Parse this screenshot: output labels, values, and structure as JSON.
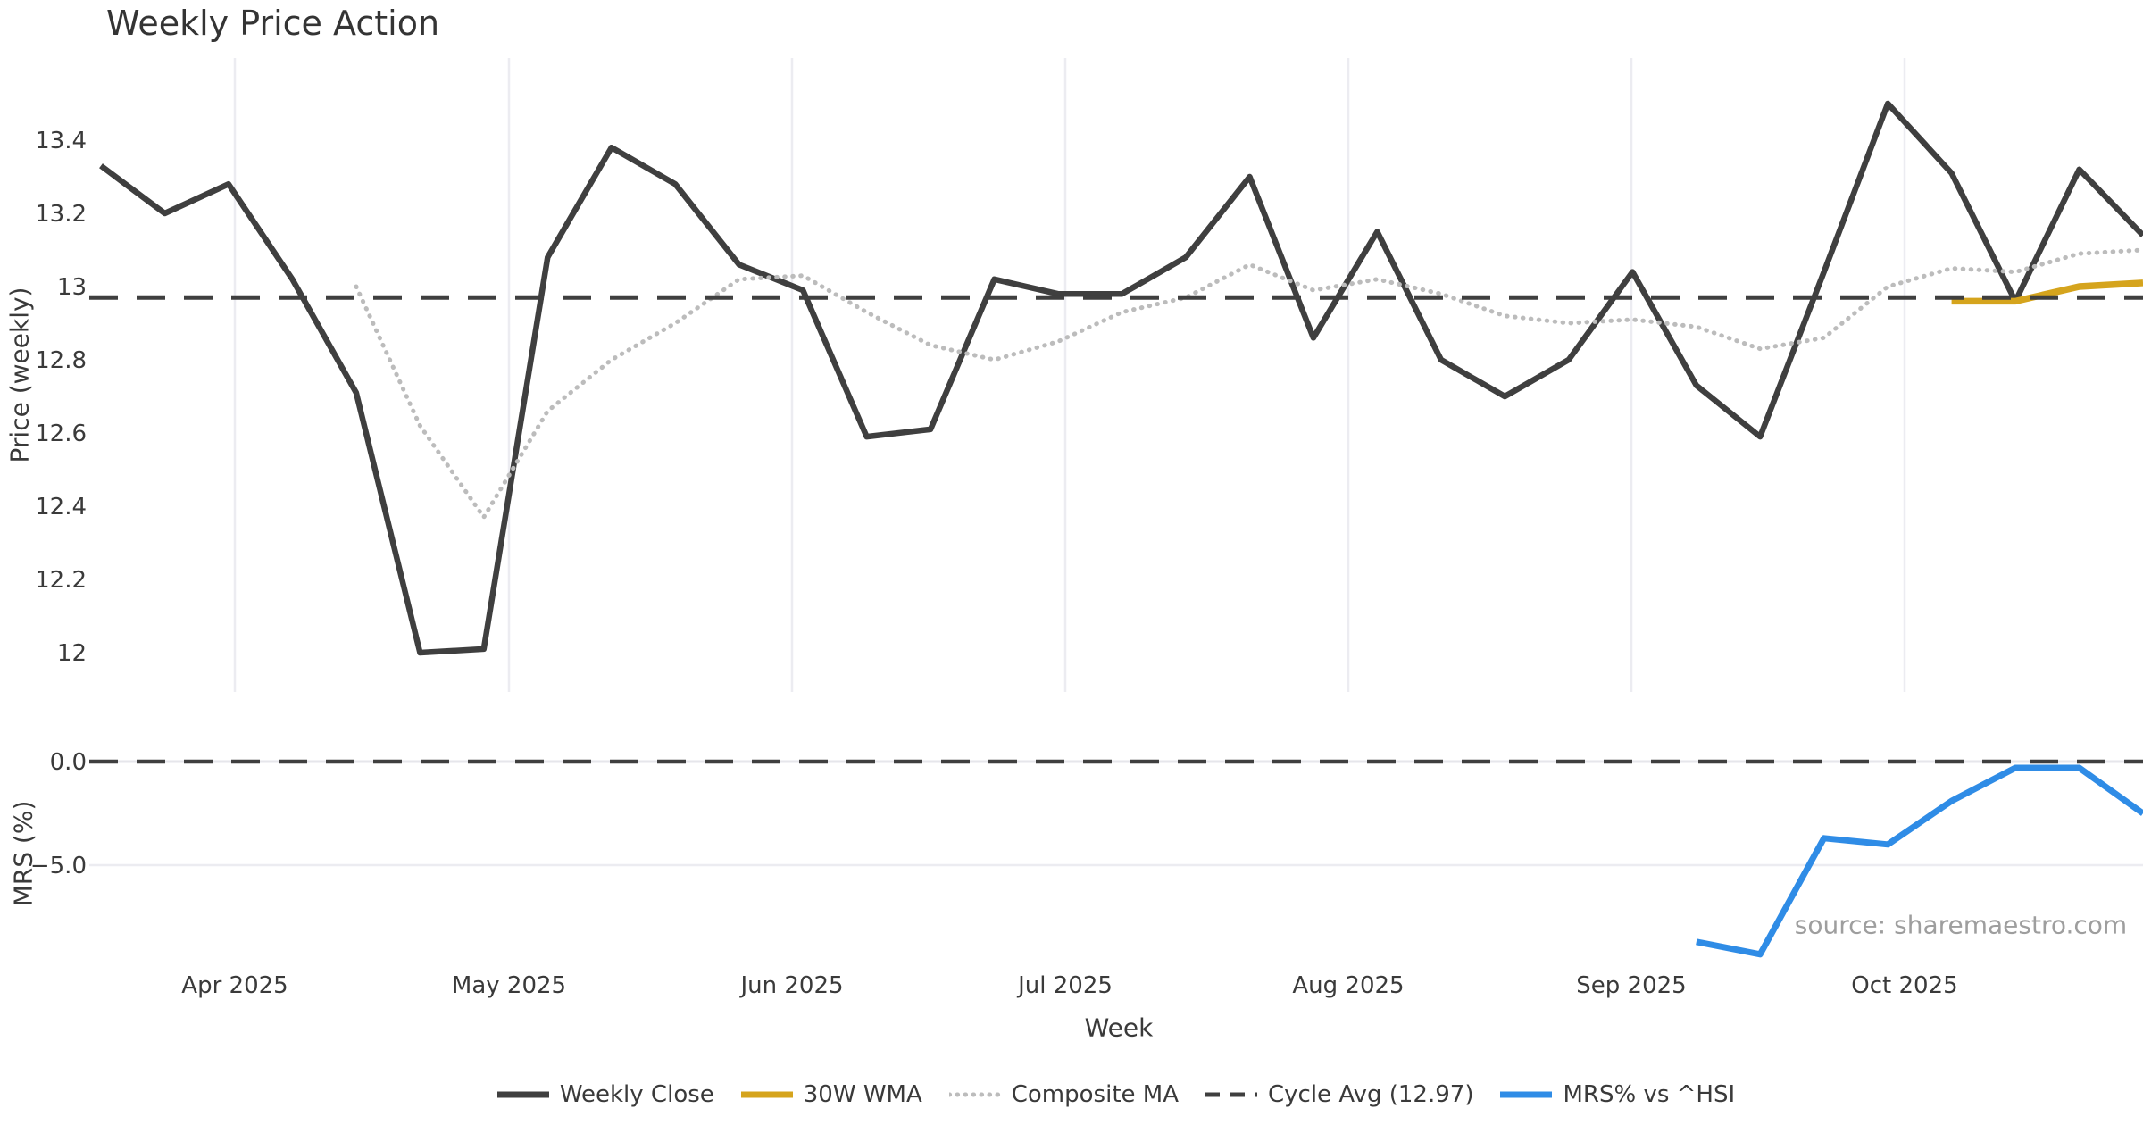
{
  "title": "Weekly Price Action",
  "source_note": "source: sharemaestro.com",
  "colors": {
    "close": "#3f3f3f",
    "wma": "#d5a41d",
    "composite": "#bcbcbc",
    "cycle": "#3f3f3f",
    "mrs": "#2f8ce6",
    "grid": "#ececf1",
    "zero_grid": "#e6e6eb",
    "tick_text": "#3a3a3a",
    "source_text": "#9e9e9e"
  },
  "legend": {
    "items": [
      {
        "label": "Weekly Close",
        "color": "#3f3f3f",
        "style": "solid"
      },
      {
        "label": "30W WMA",
        "color": "#d5a41d",
        "style": "solid"
      },
      {
        "label": "Composite MA",
        "color": "#bcbcbc",
        "style": "dotted"
      },
      {
        "label": "Cycle Avg (12.97)",
        "color": "#3f3f3f",
        "style": "dashed"
      },
      {
        "label": "MRS% vs ^HSI",
        "color": "#2f8ce6",
        "style": "solid"
      }
    ]
  },
  "chart_data": [
    {
      "type": "line",
      "panel": "price",
      "title": "Weekly Price Action",
      "xlabel": "Week",
      "ylabel": "Price (weekly)",
      "x_unit": "week",
      "n_weeks": 33,
      "x_tick_labels": [
        "Apr 2025",
        "May 2025",
        "Jun 2025",
        "Jul 2025",
        "Aug 2025",
        "Sep 2025",
        "Oct 2025"
      ],
      "y_ticks": [
        13.4,
        13.2,
        13.0,
        12.8,
        12.6,
        12.4,
        12.2,
        12.0
      ],
      "y_tick_labels": [
        "13.4",
        "13.2",
        "13",
        "12.8",
        "12.6",
        "12.4",
        "12.2",
        "12"
      ],
      "ylim": [
        11.89,
        13.63
      ],
      "grid": "vertical-only",
      "legend_position": "bottom-center",
      "series": [
        {
          "name": "Weekly Close",
          "style": "solid",
          "color": "#3f3f3f",
          "start_week_index": 0,
          "values": [
            13.33,
            13.2,
            13.28,
            13.02,
            12.71,
            12.0,
            12.01,
            13.08,
            13.38,
            13.28,
            13.06,
            12.99,
            12.59,
            12.61,
            13.02,
            12.98,
            12.98,
            13.08,
            13.3,
            12.86,
            13.15,
            12.8,
            12.7,
            12.8,
            13.04,
            12.73,
            12.59,
            13.04,
            13.5,
            13.31,
            12.96,
            13.32,
            13.14
          ]
        },
        {
          "name": "30W WMA",
          "style": "solid",
          "color": "#d5a41d",
          "start_week_index": 29,
          "values": [
            12.96,
            12.96,
            13.0,
            13.01
          ]
        },
        {
          "name": "Composite MA",
          "style": "dotted",
          "color": "#bcbcbc",
          "start_week_index": 4,
          "values": [
            13.0,
            12.62,
            12.37,
            12.66,
            12.8,
            12.9,
            13.02,
            13.03,
            12.93,
            12.84,
            12.8,
            12.85,
            12.93,
            12.97,
            13.06,
            12.99,
            13.02,
            12.98,
            12.92,
            12.9,
            12.91,
            12.89,
            12.83,
            12.86,
            13.0,
            13.05,
            13.04,
            13.09,
            13.1
          ]
        },
        {
          "name": "Cycle Avg (12.97)",
          "style": "dashed",
          "color": "#3f3f3f",
          "type": "hline",
          "value": 12.97
        }
      ]
    },
    {
      "type": "line",
      "panel": "mrs",
      "ylabel": "MRS (%)",
      "x_unit": "week",
      "y_ticks": [
        0.0,
        -5.0
      ],
      "y_tick_labels": [
        "0.0",
        "−5.0"
      ],
      "ylim": [
        -9.7,
        0.65
      ],
      "grid": "horizontal-only",
      "series": [
        {
          "name": "MRS% vs ^HSI",
          "style": "solid",
          "color": "#2f8ce6",
          "start_week_index": 25,
          "values": [
            -8.7,
            -9.3,
            -3.7,
            -4.0,
            -1.9,
            -0.3,
            -0.3,
            -2.5
          ]
        },
        {
          "name": "Zero line",
          "style": "dashed",
          "color": "#3f3f3f",
          "type": "hline",
          "value": 0.0
        }
      ]
    }
  ]
}
